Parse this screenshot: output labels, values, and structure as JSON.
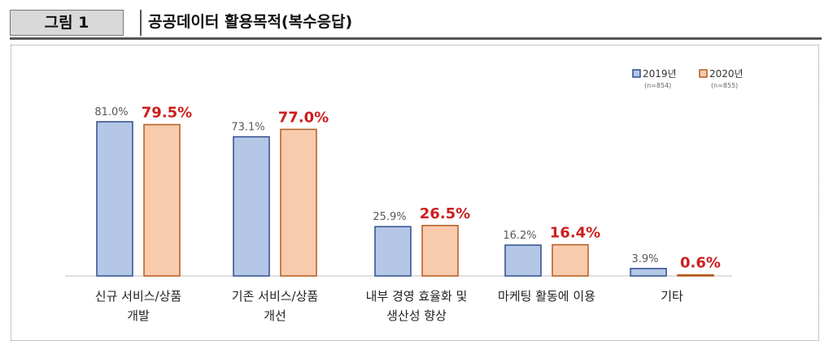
{
  "figure": {
    "label": "그림 1",
    "title": "공공데이터 활용목적(복수응답)"
  },
  "colors": {
    "series_2019_fill": "#b4c7e7",
    "series_2019_stroke": "#2f4e8c",
    "series_2020_fill": "#f8cbad",
    "series_2020_stroke": "#b55a1e",
    "label_2019": "#595959",
    "label_2020": "#cc1f1f"
  },
  "chart_data": {
    "type": "bar",
    "title": "공공데이터 활용목적(복수응답)",
    "categories": [
      [
        "신규 서비스/상품",
        "개발"
      ],
      [
        "기존 서비스/상품",
        "개선"
      ],
      [
        "내부 경영 효율화 및",
        "생산성 향상"
      ],
      [
        "마케팅 활동에 이용"
      ],
      [
        "기타"
      ]
    ],
    "series": [
      {
        "name": "2019년",
        "note": "(n=854)",
        "values": [
          81.0,
          73.1,
          25.9,
          16.2,
          3.9
        ]
      },
      {
        "name": "2020년",
        "note": "(n=855)",
        "values": [
          79.5,
          77.0,
          26.5,
          16.4,
          0.6
        ]
      }
    ],
    "unit": "%",
    "ylim": [
      0,
      85
    ],
    "legend_position": "top-right",
    "grid": false
  }
}
